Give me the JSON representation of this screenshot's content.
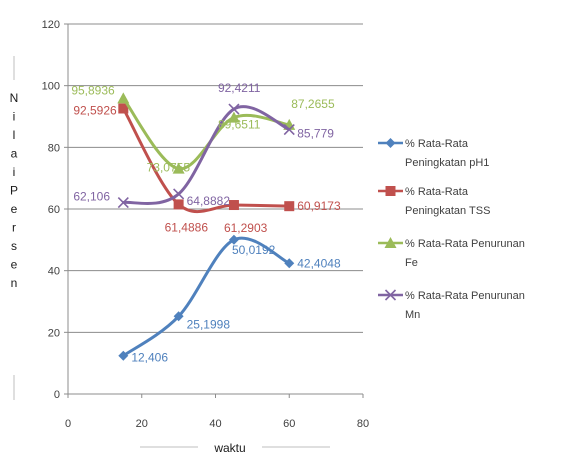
{
  "chart_data": {
    "type": "line",
    "smooth": true,
    "title": "",
    "xlabel": "waktu",
    "ylabel": "Nilai Persen",
    "xlim": [
      0,
      80
    ],
    "ylim": [
      0,
      120
    ],
    "x_ticks": [
      0,
      20,
      40,
      60,
      80
    ],
    "y_ticks": [
      0,
      20,
      40,
      60,
      80,
      100,
      120
    ],
    "grid": "horizontal",
    "legend_position": "right",
    "series": [
      {
        "name": "% Rata-Rata Peningkatan pH1",
        "color": "#4F81BD",
        "marker": "diamond",
        "x": [
          15,
          30,
          45,
          60
        ],
        "values": [
          12.406,
          25.1998,
          50.0192,
          42.4048
        ],
        "labels": [
          "12,406",
          "25,1998",
          "50,0192",
          "42,4048"
        ]
      },
      {
        "name": "% Rata-Rata Peningkatan TSS",
        "color": "#C0504D",
        "marker": "square",
        "x": [
          15,
          30,
          45,
          60
        ],
        "values": [
          92.5926,
          61.4886,
          61.2903,
          60.9173
        ],
        "labels": [
          "92,5926",
          "61,4886",
          "61,2903",
          "60,9173"
        ]
      },
      {
        "name": "% Rata-Rata Penurunan Fe",
        "color": "#9BBB59",
        "marker": "triangle",
        "x": [
          15,
          30,
          45,
          60
        ],
        "values": [
          95.8936,
          73.0755,
          89.6511,
          87.2655
        ],
        "labels": [
          "95,8936",
          "73,0755",
          "89,6511",
          "87,2655"
        ]
      },
      {
        "name": "% Rata-Rata Penurunan Mn",
        "color": "#8064A2",
        "marker": "x",
        "x": [
          15,
          30,
          45,
          60
        ],
        "values": [
          62.106,
          64.8882,
          92.4211,
          85.779
        ],
        "labels": [
          "62,106",
          "64,8882",
          "92,4211",
          "85,779"
        ]
      }
    ]
  }
}
